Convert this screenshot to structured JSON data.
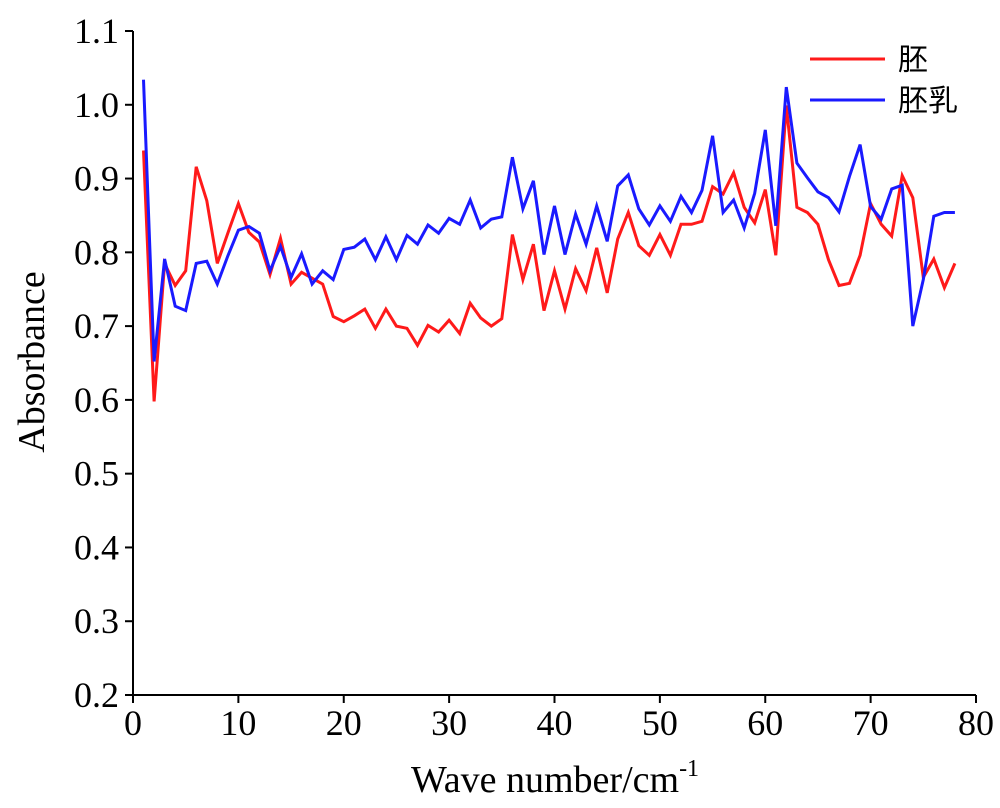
{
  "chart_data": {
    "type": "line",
    "xlabel": "Wave number/cm",
    "xlabel_sup": "-1",
    "ylabel": "Absorbance",
    "xlim": [
      0,
      80
    ],
    "ylim": [
      0.2,
      1.1
    ],
    "xticks": [
      0,
      10,
      20,
      30,
      40,
      50,
      60,
      70,
      80
    ],
    "yticks": [
      0.2,
      0.3,
      0.4,
      0.5,
      0.6,
      0.7,
      0.8,
      0.9,
      1.0,
      1.1
    ],
    "xtick_labels": [
      "0",
      "10",
      "20",
      "30",
      "40",
      "50",
      "60",
      "70",
      "80"
    ],
    "ytick_labels": [
      "0.2",
      "0.3",
      "0.4",
      "0.5",
      "0.6",
      "0.7",
      "0.8",
      "0.9",
      "1.0",
      "1.1"
    ],
    "grid": false,
    "legend_position": "top-right",
    "series": [
      {
        "name": "胚",
        "color": "#ff1a1a",
        "x": [
          1,
          2,
          3,
          4,
          5,
          6,
          7,
          8,
          9,
          10,
          11,
          12,
          13,
          14,
          15,
          16,
          17,
          18,
          19,
          20,
          21,
          22,
          23,
          24,
          25,
          26,
          27,
          28,
          29,
          30,
          31,
          32,
          33,
          34,
          35,
          36,
          37,
          38,
          39,
          40,
          41,
          42,
          43,
          44,
          45,
          46,
          47,
          48,
          49,
          50,
          51,
          52,
          53,
          54,
          55,
          56,
          57,
          58,
          59,
          60,
          61,
          62,
          63,
          64,
          65,
          66,
          67,
          68,
          69,
          70,
          71,
          72,
          73,
          74,
          75,
          76,
          77,
          78
        ],
        "y": [
          0.938,
          0.598,
          0.785,
          0.755,
          0.775,
          0.916,
          0.87,
          0.785,
          0.826,
          0.866,
          0.827,
          0.814,
          0.77,
          0.819,
          0.757,
          0.773,
          0.765,
          0.757,
          0.713,
          0.706,
          0.714,
          0.723,
          0.697,
          0.723,
          0.7,
          0.697,
          0.674,
          0.701,
          0.692,
          0.708,
          0.69,
          0.731,
          0.711,
          0.7,
          0.71,
          0.824,
          0.763,
          0.811,
          0.721,
          0.775,
          0.723,
          0.778,
          0.748,
          0.806,
          0.745,
          0.818,
          0.854,
          0.809,
          0.796,
          0.824,
          0.796,
          0.838,
          0.838,
          0.842,
          0.889,
          0.879,
          0.908,
          0.861,
          0.84,
          0.885,
          0.796,
          0.999,
          0.861,
          0.854,
          0.838,
          0.79,
          0.755,
          0.758,
          0.796,
          0.866,
          0.838,
          0.822,
          0.904,
          0.874,
          0.766,
          0.791,
          0.752,
          0.785
        ]
      },
      {
        "name": "胚乳",
        "color": "#1a1aff",
        "x": [
          1,
          2,
          3,
          4,
          5,
          6,
          7,
          8,
          9,
          10,
          11,
          12,
          13,
          14,
          15,
          16,
          17,
          18,
          19,
          20,
          21,
          22,
          23,
          24,
          25,
          26,
          27,
          28,
          29,
          30,
          31,
          32,
          33,
          34,
          35,
          36,
          37,
          38,
          39,
          40,
          41,
          42,
          43,
          44,
          45,
          46,
          47,
          48,
          49,
          50,
          51,
          52,
          53,
          54,
          55,
          56,
          57,
          58,
          59,
          60,
          61,
          62,
          63,
          64,
          65,
          66,
          67,
          68,
          69,
          70,
          71,
          72,
          73,
          74,
          75,
          76,
          77,
          78
        ],
        "y": [
          1.034,
          0.652,
          0.791,
          0.727,
          0.721,
          0.785,
          0.788,
          0.757,
          0.795,
          0.83,
          0.835,
          0.826,
          0.775,
          0.808,
          0.766,
          0.798,
          0.757,
          0.775,
          0.763,
          0.804,
          0.807,
          0.818,
          0.79,
          0.821,
          0.79,
          0.823,
          0.811,
          0.837,
          0.826,
          0.846,
          0.838,
          0.871,
          0.833,
          0.845,
          0.848,
          0.929,
          0.859,
          0.897,
          0.797,
          0.863,
          0.797,
          0.852,
          0.811,
          0.863,
          0.815,
          0.89,
          0.905,
          0.859,
          0.837,
          0.863,
          0.842,
          0.876,
          0.854,
          0.884,
          0.958,
          0.854,
          0.871,
          0.833,
          0.88,
          0.966,
          0.836,
          1.024,
          0.921,
          0.901,
          0.882,
          0.874,
          0.855,
          0.903,
          0.946,
          0.862,
          0.845,
          0.886,
          0.891,
          0.7,
          0.763,
          0.849,
          0.854,
          0.854
        ]
      }
    ]
  }
}
